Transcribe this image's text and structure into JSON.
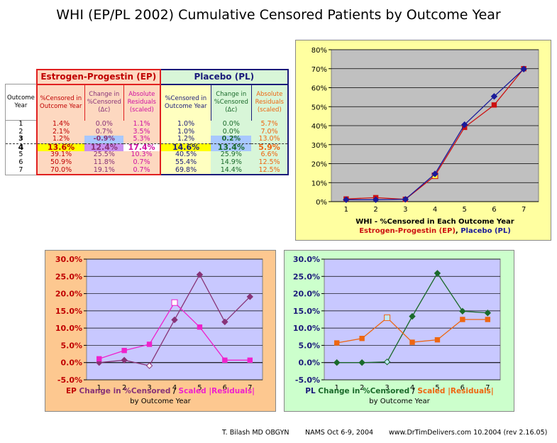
{
  "title": "WHI (EP/PL 2002) Cumulative Censored Patients by Outcome Year",
  "table": {
    "ep_group": "Estrogen-Progestin (EP)",
    "pl_group": "Placebo (PL)",
    "col_year": "Outcome Year",
    "ep_cols": [
      "%Censored in Outcome Year",
      "Change in %Censored (Δc)",
      "Absolute Residuals (scaled)"
    ],
    "pl_cols": [
      "%Censored in Outcome Year",
      "Change in %Censored (Δc)",
      "Absolute Residuals (scaled)"
    ],
    "rows": [
      [
        "1",
        "1.4%",
        "0.0%",
        "1.1%",
        "1.0%",
        "0.0%",
        "5.7%"
      ],
      [
        "2",
        "2.1%",
        "0.7%",
        "3.5%",
        "1.0%",
        "0.0%",
        "7.0%"
      ],
      [
        "3",
        "1.2%",
        "-0.9%",
        "5.3%",
        "1.2%",
        "0.2%",
        "13.0%"
      ],
      [
        "4",
        "13.6%",
        "12.4%",
        "17.4%",
        "14.6%",
        "13.4%",
        "5.9%"
      ],
      [
        "5",
        "39.1%",
        "25.5%",
        "10.3%",
        "40.5%",
        "25.9%",
        "6.6%"
      ],
      [
        "6",
        "50.9%",
        "11.8%",
        "0.7%",
        "55.4%",
        "14.9%",
        "12.5%"
      ],
      [
        "7",
        "70.0%",
        "19.1%",
        "0.7%",
        "69.8%",
        "14.4%",
        "12.5%"
      ]
    ]
  },
  "chart_data": [
    {
      "type": "line",
      "x": [
        1,
        2,
        3,
        4,
        5,
        6,
        7
      ],
      "ylim": [
        0,
        80
      ],
      "yticks": [
        "0%",
        "10%",
        "20%",
        "30%",
        "40%",
        "50%",
        "60%",
        "70%",
        "80%"
      ],
      "xlabel_line1": "WHI - %Censored in Each Outcome Year",
      "xlabel_ep": "Estrogen-Progestin (EP)",
      "xlabel_sep": ",",
      "xlabel_pl": "Placebo (PL)",
      "grid": true,
      "series": [
        {
          "name": "Estrogen-Progestin (EP)",
          "color": "#cc1111",
          "values": [
            1.4,
            2.1,
            1.2,
            13.6,
            39.1,
            50.9,
            70.0
          ]
        },
        {
          "name": "Placebo (PL)",
          "color": "#1a1a99",
          "values": [
            1.0,
            1.0,
            1.2,
            14.6,
            40.5,
            55.4,
            69.8
          ]
        }
      ]
    },
    {
      "type": "line",
      "x": [
        1,
        2,
        3,
        4,
        5,
        6,
        7
      ],
      "ylim": [
        -5,
        30
      ],
      "yticks": [
        "-5.0%",
        "0.0%",
        "5.0%",
        "10.0%",
        "15.0%",
        "20.0%",
        "25.0%",
        "30.0%"
      ],
      "label_prefix": "EP",
      "label_a": "Change in %Censored",
      "label_sep": "/",
      "label_b": "Scaled |Residuals|",
      "label_line2": "by Outcome Year",
      "series": [
        {
          "name": "Change in %Censored",
          "color": "#883377",
          "values": [
            0.0,
            0.7,
            -0.9,
            12.4,
            25.5,
            11.8,
            19.1
          ]
        },
        {
          "name": "Scaled |Residuals|",
          "color": "#ee22cc",
          "values": [
            1.1,
            3.5,
            5.3,
            17.4,
            10.3,
            0.7,
            0.7
          ]
        }
      ]
    },
    {
      "type": "line",
      "x": [
        1,
        2,
        3,
        4,
        5,
        6,
        7
      ],
      "ylim": [
        -5,
        30
      ],
      "yticks": [
        "-5.0%",
        "0.0%",
        "5.0%",
        "10.0%",
        "15.0%",
        "20.0%",
        "25.0%",
        "30.0%"
      ],
      "label_prefix": "PL",
      "label_a": "Change in %Censored",
      "label_sep": "/",
      "label_b": "Scaled |Residuals|",
      "label_line2": "by Outcome Year",
      "series": [
        {
          "name": "Change in %Censored",
          "color": "#1a6a2a",
          "values": [
            0.0,
            0.0,
            0.2,
            13.4,
            25.9,
            14.9,
            14.4
          ]
        },
        {
          "name": "Scaled |Residuals|",
          "color": "#ee6611",
          "values": [
            5.7,
            7.0,
            13.0,
            5.9,
            6.6,
            12.5,
            12.5
          ]
        }
      ]
    }
  ],
  "footer": {
    "author": "T. Bilash MD OBGYN",
    "meeting": "NAMS Oct 6-9, 2004",
    "site": "www.DrTimDelivers.com 10.2004 (rev 2.16.05)"
  }
}
